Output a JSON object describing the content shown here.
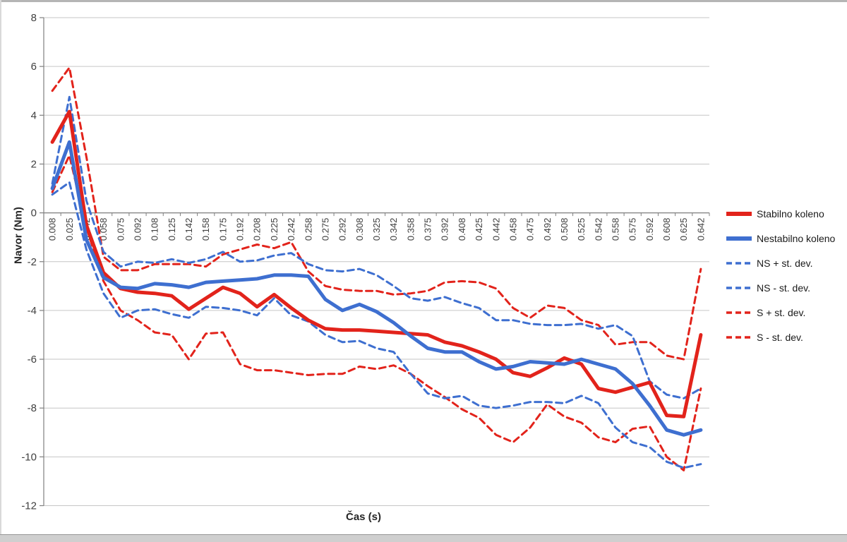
{
  "axes": {
    "y_title": "Navor (Nm)",
    "x_title": "Čas (s)",
    "y_tick_labels": [
      "8",
      "6",
      "4",
      "2",
      "0",
      "-2",
      "-4",
      "-6",
      "-8",
      "-10",
      "-12"
    ]
  },
  "colors": {
    "red": "#E2231B",
    "blue": "#3E6FD0",
    "grid": "#C6C6C6",
    "axis": "#808080",
    "tick_text": "#404040"
  },
  "chart_data": {
    "type": "line",
    "title": "",
    "xlabel": "Čas (s)",
    "ylabel": "Navor (Nm)",
    "ylim": [
      -12,
      8
    ],
    "ytick_step": 2,
    "grid": true,
    "legend_position": "right",
    "x_tick_labels": [
      "0.008",
      "0.025",
      "0.042",
      "0.058",
      "0.075",
      "0.092",
      "0.108",
      "0.125",
      "0.142",
      "0.158",
      "0.175",
      "0.192",
      "0.208",
      "0.225",
      "0.242",
      "0.258",
      "0.275",
      "0.292",
      "0.308",
      "0.325",
      "0.342",
      "0.358",
      "0.375",
      "0.392",
      "0.408",
      "0.425",
      "0.442",
      "0.458",
      "0.475",
      "0.492",
      "0.508",
      "0.525",
      "0.542",
      "0.558",
      "0.575",
      "0.592",
      "0.608",
      "0.625",
      "0.642"
    ],
    "series": [
      {
        "name": "Stabilno koleno",
        "color": "#E2231B",
        "style": "solid",
        "width": 5,
        "values": [
          2.9,
          4.15,
          -0.5,
          -2.45,
          -3.1,
          -3.25,
          -3.3,
          -3.4,
          -3.95,
          -3.5,
          -3.05,
          -3.3,
          -3.85,
          -3.35,
          -3.9,
          -4.4,
          -4.75,
          -4.8,
          -4.8,
          -4.85,
          -4.9,
          -4.95,
          -5.0,
          -5.3,
          -5.45,
          -5.7,
          -6.0,
          -6.55,
          -6.7,
          -6.35,
          -5.95,
          -6.2,
          -7.2,
          -7.35,
          -7.15,
          -6.95,
          -8.3,
          -8.35,
          -5.0
        ]
      },
      {
        "name": "Nestabilno koleno",
        "color": "#3E6FD0",
        "style": "solid",
        "width": 5,
        "values": [
          1.0,
          2.9,
          -1.1,
          -2.65,
          -3.05,
          -3.1,
          -2.9,
          -2.95,
          -3.05,
          -2.85,
          -2.8,
          -2.75,
          -2.7,
          -2.55,
          -2.55,
          -2.6,
          -3.55,
          -4.0,
          -3.75,
          -4.05,
          -4.5,
          -5.05,
          -5.55,
          -5.7,
          -5.7,
          -6.1,
          -6.4,
          -6.3,
          -6.1,
          -6.15,
          -6.2,
          -6.0,
          -6.2,
          -6.4,
          -7.0,
          -7.9,
          -8.9,
          -9.1,
          -8.9
        ]
      },
      {
        "name": "NS + st. dev.",
        "color": "#3E6FD0",
        "style": "dashed",
        "width": 3,
        "values": [
          1.2,
          4.75,
          0.5,
          -1.6,
          -2.2,
          -2.0,
          -2.05,
          -1.9,
          -2.05,
          -1.9,
          -1.6,
          -2.0,
          -1.95,
          -1.75,
          -1.65,
          -2.1,
          -2.35,
          -2.4,
          -2.3,
          -2.55,
          -3.0,
          -3.5,
          -3.6,
          -3.45,
          -3.7,
          -3.9,
          -4.4,
          -4.4,
          -4.55,
          -4.6,
          -4.6,
          -4.55,
          -4.75,
          -4.6,
          -5.05,
          -6.9,
          -7.45,
          -7.6,
          -7.2
        ]
      },
      {
        "name": "NS - st. dev.",
        "color": "#3E6FD0",
        "style": "dashed",
        "width": 3,
        "values": [
          0.75,
          1.25,
          -1.5,
          -3.3,
          -4.3,
          -4.0,
          -3.95,
          -4.15,
          -4.3,
          -3.85,
          -3.9,
          -4.0,
          -4.2,
          -3.5,
          -4.2,
          -4.45,
          -5.0,
          -5.3,
          -5.25,
          -5.55,
          -5.7,
          -6.6,
          -7.4,
          -7.6,
          -7.5,
          -7.9,
          -8.0,
          -7.9,
          -7.75,
          -7.75,
          -7.8,
          -7.5,
          -7.8,
          -8.8,
          -9.4,
          -9.6,
          -10.2,
          -10.45,
          -10.3
        ]
      },
      {
        "name": "S + st. dev.",
        "color": "#E2231B",
        "style": "dashed",
        "width": 3,
        "values": [
          5.0,
          5.95,
          2.3,
          -1.8,
          -2.35,
          -2.35,
          -2.1,
          -2.1,
          -2.1,
          -2.2,
          -1.7,
          -1.5,
          -1.3,
          -1.45,
          -1.2,
          -2.4,
          -3.0,
          -3.15,
          -3.2,
          -3.2,
          -3.35,
          -3.3,
          -3.2,
          -2.85,
          -2.8,
          -2.85,
          -3.1,
          -3.9,
          -4.3,
          -3.8,
          -3.9,
          -4.4,
          -4.6,
          -5.4,
          -5.3,
          -5.3,
          -5.85,
          -6.0,
          -2.3
        ]
      },
      {
        "name": "S - st. dev.",
        "color": "#E2231B",
        "style": "dashed",
        "width": 3,
        "values": [
          0.85,
          2.35,
          -0.6,
          -2.8,
          -4.0,
          -4.4,
          -4.9,
          -5.0,
          -6.0,
          -4.95,
          -4.9,
          -6.2,
          -6.45,
          -6.45,
          -6.55,
          -6.65,
          -6.6,
          -6.6,
          -6.3,
          -6.4,
          -6.25,
          -6.6,
          -7.1,
          -7.55,
          -8.05,
          -8.4,
          -9.1,
          -9.4,
          -8.8,
          -7.85,
          -8.35,
          -8.6,
          -9.2,
          -9.4,
          -8.85,
          -8.75,
          -10.0,
          -10.55,
          -7.2
        ]
      }
    ]
  }
}
